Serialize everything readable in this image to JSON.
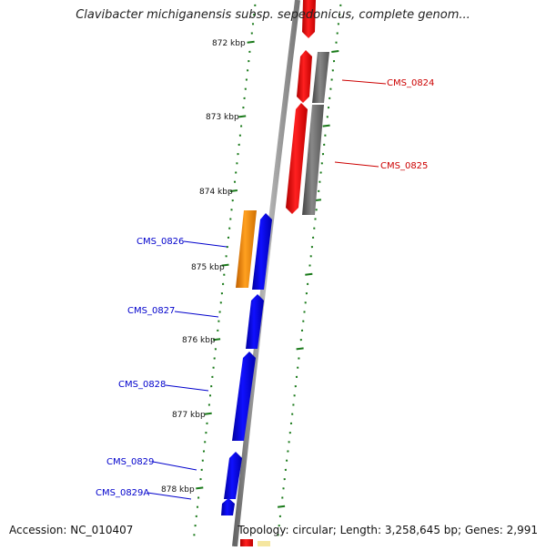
{
  "title": "Clavibacter michiganensis subsp. sepedonicus, complete genom...",
  "footer": {
    "accession": "Accession: NC_010407",
    "topology": "Topology: circular; Length: 3,258,645 bp; Genes: 2,991"
  },
  "ruler": {
    "labels": [
      "872 kbp",
      "873 kbp",
      "874 kbp",
      "875 kbp",
      "876 kbp",
      "877 kbp",
      "878 kbp"
    ]
  },
  "genes": [
    {
      "label": "CMS_0824",
      "strand": "right"
    },
    {
      "label": "CMS_0825",
      "strand": "right"
    },
    {
      "label": "CMS_0826",
      "strand": "left"
    },
    {
      "label": "CMS_0827",
      "strand": "left"
    },
    {
      "label": "CMS_0828",
      "strand": "left"
    },
    {
      "label": "CMS_0829",
      "strand": "left"
    },
    {
      "label": "CMS_0829A",
      "strand": "left"
    }
  ],
  "colors": {
    "backbone": "#888888",
    "forward_cds": "#ff0000",
    "gray_feature": "#666666",
    "reverse_cds": "#0000ff",
    "orange_feature": "#ff8c00",
    "tick": "#1a7a1a",
    "label_right": "#cc0000",
    "label_left": "#0000cc"
  }
}
